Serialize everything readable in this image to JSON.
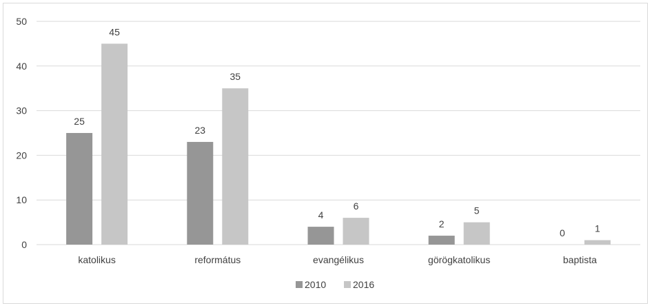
{
  "chart_data": {
    "type": "bar",
    "categories": [
      "katolikus",
      "református",
      "evangélikus",
      "görögkatolikus",
      "baptista"
    ],
    "series": [
      {
        "name": "2010",
        "values": [
          25,
          23,
          4,
          2,
          0
        ],
        "color": "#969696"
      },
      {
        "name": "2016",
        "values": [
          45,
          35,
          6,
          5,
          1
        ],
        "color": "#c6c6c6"
      }
    ],
    "y_ticks": [
      "0",
      "10",
      "20",
      "30",
      "40",
      "50"
    ],
    "ylim": [
      0,
      50
    ],
    "grid": true,
    "gridline_color": "#d9d9d9",
    "data_labels": true,
    "legend_position": "bottom"
  }
}
